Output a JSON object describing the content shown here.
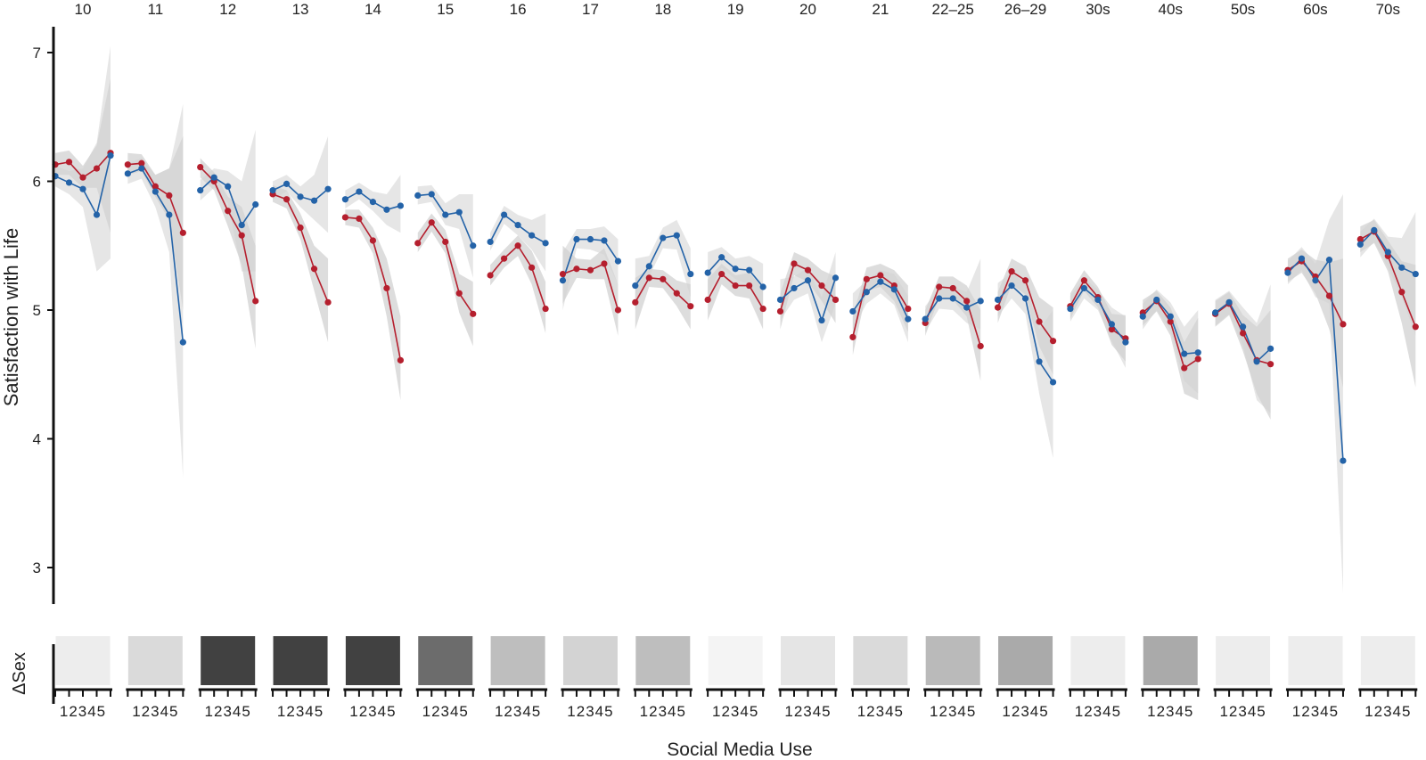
{
  "chart_data": {
    "type": "line",
    "ylabel": "Satisfaction with Life",
    "xlabel": "Social Media Use",
    "bottom_ylabel": "ΔSex",
    "ylim": [
      2.8,
      7.2
    ],
    "yticks": [
      3,
      4,
      5,
      6,
      7
    ],
    "x_levels": [
      1,
      2,
      3,
      4,
      5
    ],
    "x_level_label": "12345",
    "grid": false,
    "colors": {
      "red_series": "#b51f2e",
      "blue_series": "#2463a8",
      "band_light": "#e2e2e2",
      "band_dark": "#d2d2d2"
    },
    "panels": [
      {
        "label": "10",
        "red": [
          6.13,
          6.15,
          6.03,
          6.1,
          6.22
        ],
        "blue": [
          6.04,
          5.99,
          5.94,
          5.74,
          6.2
        ],
        "red_band": [
          [
            6.05,
            6.22
          ],
          [
            6.05,
            6.24
          ],
          [
            5.95,
            6.12
          ],
          [
            5.95,
            6.28
          ],
          [
            5.6,
            6.8
          ]
        ],
        "blue_band": [
          [
            5.96,
            6.12
          ],
          [
            5.9,
            6.08
          ],
          [
            5.8,
            6.1
          ],
          [
            5.3,
            6.3
          ],
          [
            5.4,
            7.05
          ]
        ],
        "delta_sex": 0.06
      },
      {
        "label": "11",
        "red": [
          6.13,
          6.14,
          5.96,
          5.89,
          5.6
        ],
        "blue": [
          6.06,
          6.1,
          5.92,
          5.74,
          4.75
        ],
        "red_band": [
          [
            6.05,
            6.22
          ],
          [
            6.08,
            6.21
          ],
          [
            5.88,
            6.05
          ],
          [
            5.7,
            6.1
          ],
          [
            5.0,
            6.35
          ]
        ],
        "blue_band": [
          [
            5.98,
            6.14
          ],
          [
            6.02,
            6.18
          ],
          [
            5.8,
            6.05
          ],
          [
            5.45,
            6.1
          ],
          [
            3.7,
            6.6
          ]
        ],
        "delta_sex": 0.15
      },
      {
        "label": "12",
        "red": [
          6.11,
          6.0,
          5.77,
          5.58,
          5.07
        ],
        "blue": [
          5.93,
          6.03,
          5.96,
          5.66,
          5.82
        ],
        "red_band": [
          [
            6.03,
            6.18
          ],
          [
            5.93,
            6.07
          ],
          [
            5.65,
            5.88
          ],
          [
            5.35,
            5.8
          ],
          [
            4.7,
            5.5
          ]
        ],
        "blue_band": [
          [
            5.85,
            6.01
          ],
          [
            5.95,
            6.1
          ],
          [
            5.83,
            6.08
          ],
          [
            5.3,
            6.0
          ],
          [
            5.3,
            6.4
          ]
        ],
        "delta_sex": 0.86
      },
      {
        "label": "13",
        "red": [
          5.9,
          5.86,
          5.64,
          5.32,
          5.06
        ],
        "blue": [
          5.93,
          5.98,
          5.88,
          5.85,
          5.94
        ],
        "red_band": [
          [
            5.84,
            5.97
          ],
          [
            5.79,
            5.93
          ],
          [
            5.55,
            5.75
          ],
          [
            5.15,
            5.5
          ],
          [
            4.75,
            5.4
          ]
        ],
        "blue_band": [
          [
            5.86,
            6.0
          ],
          [
            5.92,
            6.05
          ],
          [
            5.8,
            5.96
          ],
          [
            5.7,
            6.05
          ],
          [
            5.6,
            6.35
          ]
        ],
        "delta_sex": 0.86
      },
      {
        "label": "14",
        "red": [
          5.72,
          5.71,
          5.54,
          5.17,
          4.61
        ],
        "blue": [
          5.86,
          5.92,
          5.84,
          5.78,
          5.81
        ],
        "red_band": [
          [
            5.66,
            5.78
          ],
          [
            5.64,
            5.78
          ],
          [
            5.44,
            5.64
          ],
          [
            4.95,
            5.4
          ],
          [
            4.3,
            4.95
          ]
        ],
        "blue_band": [
          [
            5.79,
            5.93
          ],
          [
            5.86,
            5.99
          ],
          [
            5.77,
            5.92
          ],
          [
            5.66,
            5.9
          ],
          [
            5.6,
            6.05
          ]
        ],
        "delta_sex": 0.86
      },
      {
        "label": "15",
        "red": [
          5.52,
          5.68,
          5.53,
          5.13,
          4.97
        ],
        "blue": [
          5.89,
          5.9,
          5.74,
          5.76,
          5.5
        ],
        "red_band": [
          [
            5.45,
            5.6
          ],
          [
            5.61,
            5.75
          ],
          [
            5.44,
            5.62
          ],
          [
            4.98,
            5.28
          ],
          [
            4.72,
            5.22
          ]
        ],
        "blue_band": [
          [
            5.82,
            5.96
          ],
          [
            5.84,
            5.97
          ],
          [
            5.66,
            5.83
          ],
          [
            5.63,
            5.9
          ],
          [
            5.25,
            5.9
          ]
        ],
        "delta_sex": 0.66
      },
      {
        "label": "16",
        "red": [
          5.27,
          5.4,
          5.5,
          5.33,
          5.01
        ],
        "blue": [
          5.53,
          5.74,
          5.66,
          5.58,
          5.52
        ],
        "red_band": [
          [
            5.19,
            5.35
          ],
          [
            5.33,
            5.47
          ],
          [
            5.42,
            5.58
          ],
          [
            5.2,
            5.46
          ],
          [
            4.82,
            5.22
          ]
        ],
        "blue_band": [
          [
            5.46,
            5.6
          ],
          [
            5.67,
            5.81
          ],
          [
            5.58,
            5.74
          ],
          [
            5.47,
            5.7
          ],
          [
            5.3,
            5.75
          ]
        ],
        "delta_sex": 0.28
      },
      {
        "label": "17",
        "red": [
          5.28,
          5.32,
          5.31,
          5.36,
          5.0
        ],
        "blue": [
          5.23,
          5.55,
          5.55,
          5.54,
          5.38
        ],
        "red_band": [
          [
            5.05,
            5.5
          ],
          [
            5.25,
            5.4
          ],
          [
            5.24,
            5.39
          ],
          [
            5.24,
            5.48
          ],
          [
            4.8,
            5.2
          ]
        ],
        "blue_band": [
          [
            5.0,
            5.45
          ],
          [
            5.48,
            5.63
          ],
          [
            5.47,
            5.63
          ],
          [
            5.43,
            5.65
          ],
          [
            5.2,
            5.55
          ]
        ],
        "delta_sex": 0.18
      },
      {
        "label": "18",
        "red": [
          5.06,
          5.25,
          5.24,
          5.13,
          5.03
        ],
        "blue": [
          5.19,
          5.34,
          5.56,
          5.58,
          5.28
        ],
        "red_band": [
          [
            4.85,
            5.25
          ],
          [
            5.18,
            5.32
          ],
          [
            5.17,
            5.31
          ],
          [
            5.03,
            5.23
          ],
          [
            4.85,
            5.2
          ]
        ],
        "blue_band": [
          [
            5.0,
            5.4
          ],
          [
            5.26,
            5.42
          ],
          [
            5.48,
            5.64
          ],
          [
            5.47,
            5.7
          ],
          [
            5.1,
            5.48
          ]
        ],
        "delta_sex": 0.28
      },
      {
        "label": "19",
        "red": [
          5.08,
          5.28,
          5.19,
          5.19,
          5.01
        ],
        "blue": [
          5.29,
          5.41,
          5.32,
          5.31,
          5.18
        ],
        "red_band": [
          [
            4.92,
            5.24
          ],
          [
            5.2,
            5.36
          ],
          [
            5.11,
            5.27
          ],
          [
            5.09,
            5.29
          ],
          [
            4.85,
            5.17
          ]
        ],
        "blue_band": [
          [
            5.12,
            5.45
          ],
          [
            5.33,
            5.49
          ],
          [
            5.24,
            5.4
          ],
          [
            5.2,
            5.42
          ],
          [
            5.0,
            5.36
          ]
        ],
        "delta_sex": 0.03
      },
      {
        "label": "20",
        "red": [
          4.99,
          5.36,
          5.31,
          5.19,
          5.08
        ],
        "blue": [
          5.08,
          5.17,
          5.23,
          4.92,
          5.25
        ],
        "red_band": [
          [
            4.85,
            5.13
          ],
          [
            5.27,
            5.45
          ],
          [
            5.22,
            5.4
          ],
          [
            5.07,
            5.31
          ],
          [
            4.9,
            5.26
          ]
        ],
        "blue_band": [
          [
            4.92,
            5.24
          ],
          [
            5.08,
            5.26
          ],
          [
            5.13,
            5.33
          ],
          [
            4.75,
            5.1
          ],
          [
            5.05,
            5.45
          ]
        ],
        "delta_sex": 0.1
      },
      {
        "label": "21",
        "red": [
          4.79,
          5.24,
          5.27,
          5.19,
          5.01
        ],
        "blue": [
          4.99,
          5.14,
          5.22,
          5.16,
          4.93
        ],
        "red_band": [
          [
            4.65,
            4.95
          ],
          [
            5.15,
            5.33
          ],
          [
            5.18,
            5.36
          ],
          [
            5.07,
            5.31
          ],
          [
            4.83,
            5.19
          ]
        ],
        "blue_band": [
          [
            4.85,
            5.13
          ],
          [
            5.05,
            5.23
          ],
          [
            5.13,
            5.31
          ],
          [
            5.04,
            5.28
          ],
          [
            4.75,
            5.11
          ]
        ],
        "delta_sex": 0.15
      },
      {
        "label": "22–25",
        "red": [
          4.9,
          5.18,
          5.17,
          5.07,
          4.72
        ],
        "blue": [
          4.93,
          5.09,
          5.09,
          5.02,
          5.07
        ],
        "red_band": [
          [
            4.8,
            5.0
          ],
          [
            5.1,
            5.26
          ],
          [
            5.08,
            5.26
          ],
          [
            4.95,
            5.19
          ],
          [
            4.45,
            5.0
          ]
        ],
        "blue_band": [
          [
            4.83,
            5.03
          ],
          [
            5.01,
            5.17
          ],
          [
            5.0,
            5.18
          ],
          [
            4.9,
            5.14
          ],
          [
            4.85,
            5.4
          ]
        ],
        "delta_sex": 0.3
      },
      {
        "label": "26–29",
        "red": [
          5.02,
          5.3,
          5.23,
          4.91,
          4.76
        ],
        "blue": [
          5.08,
          5.19,
          5.09,
          4.6,
          4.44
        ],
        "red_band": [
          [
            4.9,
            5.14
          ],
          [
            5.2,
            5.4
          ],
          [
            5.12,
            5.34
          ],
          [
            4.72,
            5.1
          ],
          [
            4.5,
            5.02
          ]
        ],
        "blue_band": [
          [
            4.95,
            5.21
          ],
          [
            5.09,
            5.29
          ],
          [
            4.97,
            5.21
          ],
          [
            4.35,
            4.85
          ],
          [
            3.85,
            5.0
          ]
        ],
        "delta_sex": 0.37
      },
      {
        "label": "30s",
        "red": [
          5.03,
          5.23,
          5.1,
          4.85,
          4.78
        ],
        "blue": [
          5.01,
          5.17,
          5.08,
          4.89,
          4.75
        ],
        "red_band": [
          [
            4.93,
            5.13
          ],
          [
            5.15,
            5.31
          ],
          [
            5.02,
            5.18
          ],
          [
            4.73,
            4.97
          ],
          [
            4.6,
            4.96
          ]
        ],
        "blue_band": [
          [
            4.91,
            5.11
          ],
          [
            5.09,
            5.25
          ],
          [
            5.0,
            5.16
          ],
          [
            4.76,
            5.02
          ],
          [
            4.55,
            4.95
          ]
        ],
        "delta_sex": 0.06
      },
      {
        "label": "40s",
        "red": [
          4.98,
          5.07,
          4.91,
          4.55,
          4.62
        ],
        "blue": [
          4.95,
          5.08,
          4.95,
          4.66,
          4.67
        ],
        "red_band": [
          [
            4.88,
            5.08
          ],
          [
            4.99,
            5.15
          ],
          [
            4.8,
            5.02
          ],
          [
            4.35,
            4.75
          ],
          [
            4.3,
            4.94
          ]
        ],
        "blue_band": [
          [
            4.85,
            5.05
          ],
          [
            5.0,
            5.16
          ],
          [
            4.84,
            5.06
          ],
          [
            4.45,
            4.87
          ],
          [
            4.35,
            5.0
          ]
        ],
        "delta_sex": 0.37
      },
      {
        "label": "50s",
        "red": [
          4.97,
          5.05,
          4.82,
          4.61,
          4.58
        ],
        "blue": [
          4.98,
          5.06,
          4.87,
          4.6,
          4.7
        ],
        "red_band": [
          [
            4.87,
            5.07
          ],
          [
            4.96,
            5.14
          ],
          [
            4.68,
            4.96
          ],
          [
            4.35,
            4.87
          ],
          [
            4.15,
            5.0
          ]
        ],
        "blue_band": [
          [
            4.88,
            5.08
          ],
          [
            4.97,
            5.15
          ],
          [
            4.72,
            5.02
          ],
          [
            4.3,
            4.9
          ],
          [
            4.2,
            5.2
          ]
        ],
        "delta_sex": 0.06
      },
      {
        "label": "60s",
        "red": [
          5.31,
          5.38,
          5.26,
          5.11,
          4.89
        ],
        "blue": [
          5.29,
          5.4,
          5.23,
          5.39,
          3.83
        ],
        "red_band": [
          [
            5.22,
            5.4
          ],
          [
            5.29,
            5.47
          ],
          [
            5.13,
            5.39
          ],
          [
            4.85,
            5.37
          ],
          [
            4.4,
            5.4
          ]
        ],
        "blue_band": [
          [
            5.2,
            5.38
          ],
          [
            5.31,
            5.49
          ],
          [
            5.1,
            5.36
          ],
          [
            5.05,
            5.7
          ],
          [
            2.8,
            5.9
          ]
        ],
        "delta_sex": 0.06
      },
      {
        "label": "70s",
        "red": [
          5.55,
          5.61,
          5.42,
          5.14,
          4.87
        ],
        "blue": [
          5.51,
          5.62,
          5.45,
          5.33,
          5.28
        ],
        "red_band": [
          [
            5.45,
            5.65
          ],
          [
            5.52,
            5.7
          ],
          [
            5.3,
            5.54
          ],
          [
            4.9,
            5.38
          ],
          [
            4.4,
            5.35
          ]
        ],
        "blue_band": [
          [
            5.41,
            5.61
          ],
          [
            5.53,
            5.71
          ],
          [
            5.33,
            5.57
          ],
          [
            5.1,
            5.56
          ],
          [
            4.8,
            5.76
          ]
        ],
        "delta_sex": 0.06
      }
    ]
  }
}
